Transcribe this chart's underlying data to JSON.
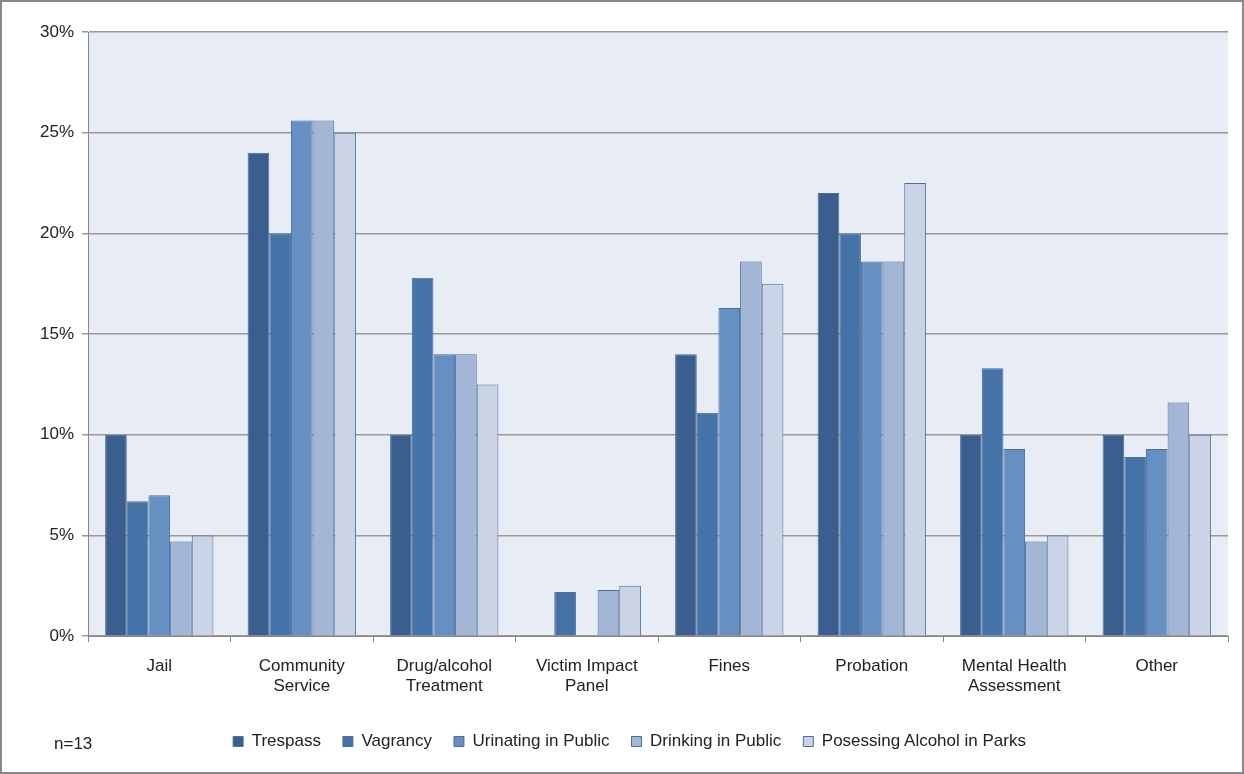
{
  "chart_data": {
    "type": "bar",
    "categories": [
      "Jail",
      "Community Service",
      "Drug/alcohol Treatment",
      "Victim Impact Panel",
      "Fines",
      "Probation",
      "Mental Health Assessment",
      "Other"
    ],
    "series": [
      {
        "name": "Trespass",
        "color": "#3a5f8f",
        "values": [
          10,
          24,
          10,
          0,
          14,
          22,
          10,
          10
        ]
      },
      {
        "name": "Vagrancy",
        "color": "#4572a7",
        "values": [
          6.7,
          20,
          17.8,
          2.2,
          11.1,
          20,
          13.3,
          8.9
        ]
      },
      {
        "name": "Urinating in Public",
        "color": "#668fc2",
        "values": [
          7,
          25.6,
          14,
          0,
          16.3,
          18.6,
          9.3,
          9.3
        ]
      },
      {
        "name": "Drinking in Public",
        "color": "#a3b6d6",
        "values": [
          4.7,
          25.6,
          14,
          2.3,
          18.6,
          18.6,
          4.7,
          11.6
        ]
      },
      {
        "name": "Posessing Alcohol in Parks",
        "color": "#cad4e6",
        "values": [
          5,
          25,
          12.5,
          2.5,
          17.5,
          22.5,
          5,
          10
        ]
      }
    ],
    "ylim": [
      0,
      30
    ],
    "yticks": [
      {
        "value": 0,
        "label": "0%"
      },
      {
        "value": 5,
        "label": "5%"
      },
      {
        "value": 10,
        "label": "10%"
      },
      {
        "value": 15,
        "label": "15%"
      },
      {
        "value": 20,
        "label": "20%"
      },
      {
        "value": 25,
        "label": "25%"
      },
      {
        "value": 30,
        "label": "30%"
      }
    ],
    "grid": "y",
    "legend": "bottom",
    "annotations": [
      "n=13"
    ]
  }
}
